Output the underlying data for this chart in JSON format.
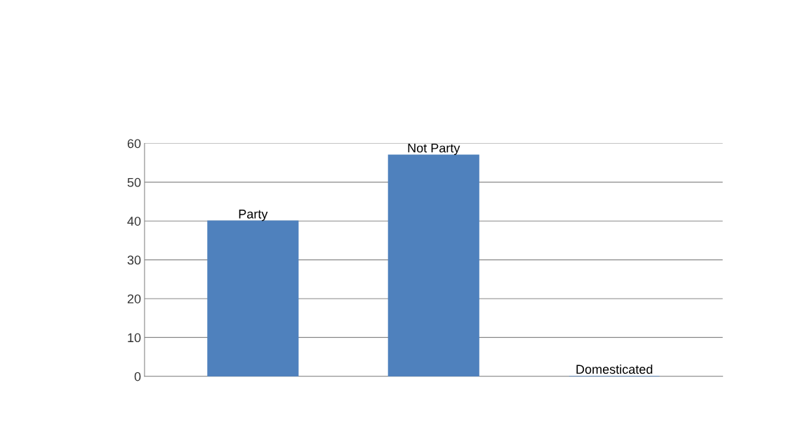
{
  "chart_data": {
    "type": "bar",
    "categories": [
      "Party",
      "Not Party",
      "Domesticated"
    ],
    "values": [
      40,
      57,
      0
    ],
    "color": "#4f81bd",
    "ylim": [
      0,
      60
    ],
    "yticks": [
      0,
      10,
      20,
      30,
      40,
      50,
      60
    ],
    "grid": "y",
    "legend": false
  }
}
